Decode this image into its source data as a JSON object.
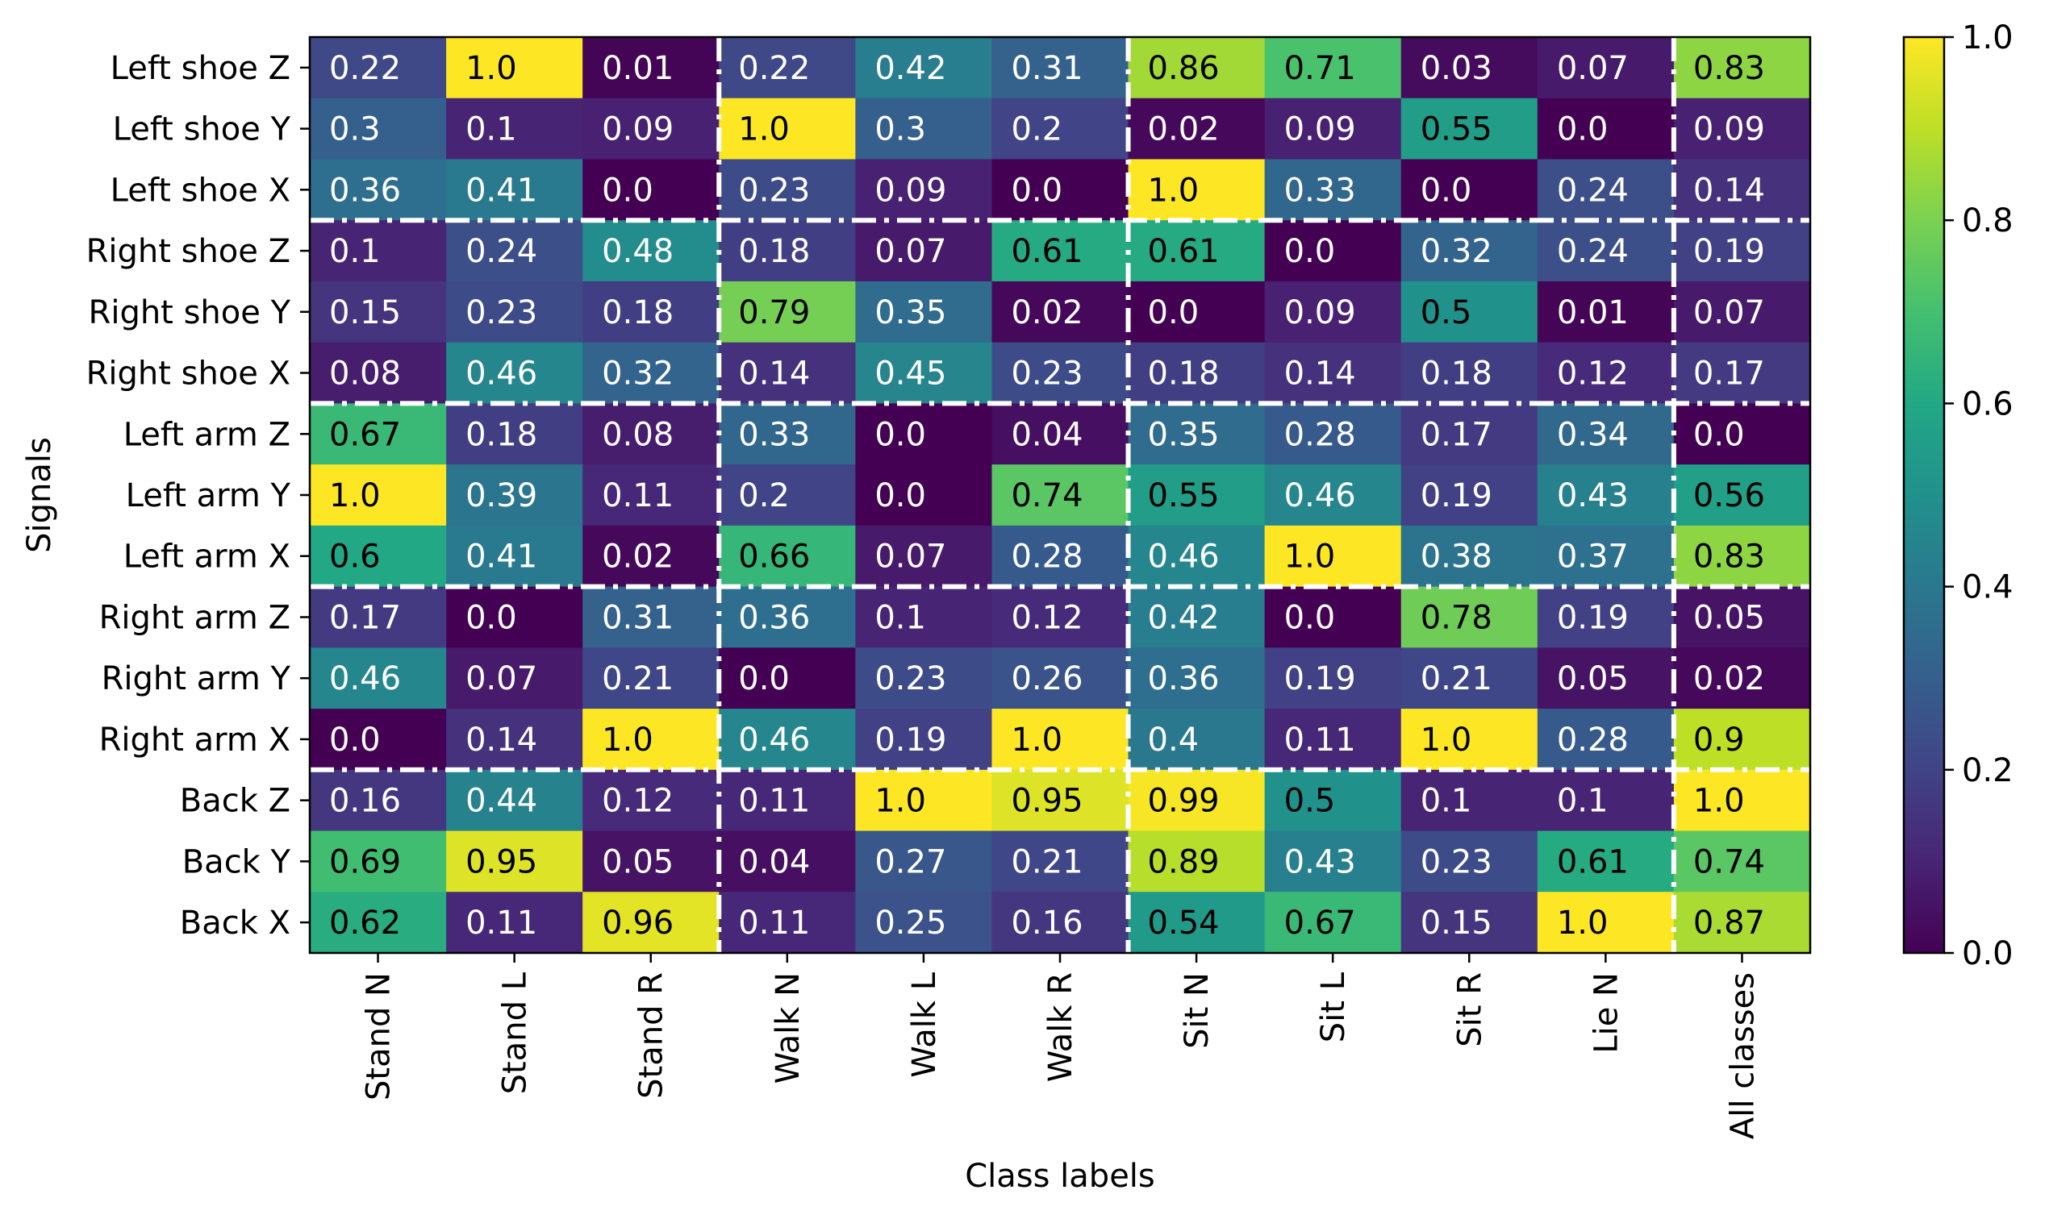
{
  "chart_data": {
    "type": "heatmap",
    "xlabel": "Class labels",
    "ylabel": "Signals",
    "x_categories": [
      "Stand N",
      "Stand L",
      "Stand R",
      "Walk N",
      "Walk L",
      "Walk R",
      "Sit N",
      "Sit L",
      "Sit R",
      "Lie N",
      "All classes"
    ],
    "y_categories": [
      "Left shoe Z",
      "Left shoe Y",
      "Left shoe X",
      "Right shoe Z",
      "Right shoe Y",
      "Right shoe X",
      "Left arm Z",
      "Left arm Y",
      "Left arm X",
      "Right arm Z",
      "Right arm Y",
      "Right arm X",
      "Back Z",
      "Back Y",
      "Back X"
    ],
    "values": [
      [
        "0.22",
        "1.0",
        "0.01",
        "0.22",
        "0.42",
        "0.31",
        "0.86",
        "0.71",
        "0.03",
        "0.07",
        "0.83"
      ],
      [
        "0.3",
        "0.1",
        "0.09",
        "1.0",
        "0.3",
        "0.2",
        "0.02",
        "0.09",
        "0.55",
        "0.0",
        "0.09"
      ],
      [
        "0.36",
        "0.41",
        "0.0",
        "0.23",
        "0.09",
        "0.0",
        "1.0",
        "0.33",
        "0.0",
        "0.24",
        "0.14"
      ],
      [
        "0.1",
        "0.24",
        "0.48",
        "0.18",
        "0.07",
        "0.61",
        "0.61",
        "0.0",
        "0.32",
        "0.24",
        "0.19"
      ],
      [
        "0.15",
        "0.23",
        "0.18",
        "0.79",
        "0.35",
        "0.02",
        "0.0",
        "0.09",
        "0.5",
        "0.01",
        "0.07"
      ],
      [
        "0.08",
        "0.46",
        "0.32",
        "0.14",
        "0.45",
        "0.23",
        "0.18",
        "0.14",
        "0.18",
        "0.12",
        "0.17"
      ],
      [
        "0.67",
        "0.18",
        "0.08",
        "0.33",
        "0.0",
        "0.04",
        "0.35",
        "0.28",
        "0.17",
        "0.34",
        "0.0"
      ],
      [
        "1.0",
        "0.39",
        "0.11",
        "0.2",
        "0.0",
        "0.74",
        "0.55",
        "0.46",
        "0.19",
        "0.43",
        "0.56"
      ],
      [
        "0.6",
        "0.41",
        "0.02",
        "0.66",
        "0.07",
        "0.28",
        "0.46",
        "1.0",
        "0.38",
        "0.37",
        "0.83"
      ],
      [
        "0.17",
        "0.0",
        "0.31",
        "0.36",
        "0.1",
        "0.12",
        "0.42",
        "0.0",
        "0.78",
        "0.19",
        "0.05"
      ],
      [
        "0.46",
        "0.07",
        "0.21",
        "0.0",
        "0.23",
        "0.26",
        "0.36",
        "0.19",
        "0.21",
        "0.05",
        "0.02"
      ],
      [
        "0.0",
        "0.14",
        "1.0",
        "0.46",
        "0.19",
        "1.0",
        "0.4",
        "0.11",
        "1.0",
        "0.28",
        "0.9"
      ],
      [
        "0.16",
        "0.44",
        "0.12",
        "0.11",
        "1.0",
        "0.95",
        "0.99",
        "0.5",
        "0.1",
        "0.1",
        "1.0"
      ],
      [
        "0.69",
        "0.95",
        "0.05",
        "0.04",
        "0.27",
        "0.21",
        "0.89",
        "0.43",
        "0.23",
        "0.61",
        "0.74"
      ],
      [
        "0.62",
        "0.11",
        "0.96",
        "0.11",
        "0.25",
        "0.16",
        "0.54",
        "0.67",
        "0.15",
        "1.0",
        "0.87"
      ]
    ],
    "vmin": 0.0,
    "vmax": 1.0,
    "colormap": "viridis",
    "colorbar_ticks": [
      "0.0",
      "0.2",
      "0.4",
      "0.6",
      "0.8",
      "1.0"
    ],
    "horizontal_group_separators_after_rows": [
      3,
      6,
      9,
      12
    ],
    "vertical_group_separators_after_columns": [
      3,
      6,
      10
    ],
    "separator_color": "#ffffff",
    "dark_text_color": "#000000",
    "light_text_color": "#ffffff",
    "legend": "colorbar right"
  }
}
